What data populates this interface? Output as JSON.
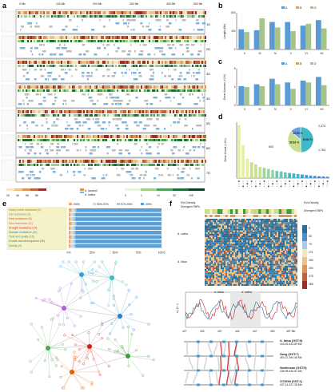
{
  "panel_labels": [
    "a",
    "b",
    "c",
    "d",
    "e",
    "f"
  ],
  "panel_a": {
    "scale_ticks": [
      "0 Mb",
      "100 Mb",
      "200 Mb",
      "300 Mb",
      "400 Mb",
      "500 Mb"
    ],
    "chromosome_groups": [
      "1D",
      "2D",
      "3D",
      "4D",
      "5D",
      "6D",
      "7D"
    ],
    "legend_series": [
      "A. tauschii",
      "A. sativa"
    ],
    "density_ticks": [
      "26",
      "46",
      "66",
      "86",
      "0",
      "1",
      "10",
      "33",
      "105"
    ]
  },
  "panel_f": {
    "labels": {
      "svs_density": "SVs Density",
      "divergent_snps": "Divergent SNPs",
      "a_sativa": "A. sativa",
      "a_fatua": "A. fatua",
      "svs_density_scale": [
        "0",
        "30",
        "79",
        "171",
        "180",
        "200",
        "275",
        "285"
      ],
      "pi_axis": "π (10⁻³)",
      "axis_ticks": [
        "427",
        "432",
        "437",
        "442",
        "447",
        "452",
        "457 Mb"
      ],
      "pi_legend": [
        "A. fatua",
        "A. sativa"
      ]
    },
    "accessions": [
      {
        "name": "A. fatua (GST:9)",
        "range": "443.45-443.89 Mb"
      },
      {
        "name": "Sang (GST:7)",
        "range": "394.21-394.46 Mb"
      },
      {
        "name": "Sanfensan (GST:5)",
        "range": "436.98-426.61 Mb"
      },
      {
        "name": "OT3098 (GST:1)",
        "range": "437.14-437.38 Mb"
      }
    ]
  },
  "chart_data": [
    {
      "type": "bar",
      "panel": "b",
      "ylabel": "Length (Mb)",
      "categories": [
        "II",
        "III",
        "IV",
        "V",
        "VI",
        "VII"
      ],
      "legend": [
        "A",
        "B",
        "D"
      ],
      "colors": [
        "#5b9bd5",
        "#d9a066",
        "#a5c38a"
      ],
      "series": [
        {
          "name": "A",
          "values": [
            440,
            420,
            600,
            600,
            520,
            640
          ]
        },
        {
          "name": "D",
          "values": [
            380,
            680,
            480,
            400,
            560,
            460
          ]
        }
      ],
      "ylim": [
        0,
        800
      ]
    },
    {
      "type": "bar",
      "panel": "c",
      "ylabel": "Gene Number (×10³)",
      "categories": [
        "II",
        "III",
        "IV",
        "V",
        "VI",
        "VII"
      ],
      "legend": [
        "A",
        "B",
        "D"
      ],
      "colors": [
        "#5b9bd5",
        "#d9a066",
        "#a5c38a"
      ],
      "series": [
        {
          "name": "A",
          "values": [
            4.2,
            4.6,
            5.8,
            5.0,
            5.4,
            6.2
          ]
        },
        {
          "name": "D",
          "values": [
            4.0,
            4.2,
            4.6,
            3.6,
            5.0,
            4.4
          ]
        }
      ],
      "ylim": [
        0,
        8
      ]
    },
    {
      "type": "bar",
      "panel": "d",
      "ylabel": "Gene Count (×10³)",
      "values": [
        10.4,
        6.5,
        3.8,
        3.1,
        2.7,
        2.2,
        2.0,
        1.8,
        1.6,
        1.4,
        1.3,
        1.1,
        1.0,
        0.9,
        0.8,
        0.7,
        0.6,
        0.5,
        0.4,
        0.35,
        0.3,
        0.25
      ],
      "pie": {
        "slices": [
          {
            "label": "49.64 %",
            "count": "2,373",
            "value": 49.64,
            "color": "#3fb9c6"
          },
          {
            "label": "36.83 %",
            "count": "1,764",
            "value": 36.83,
            "color": "#c8e08e"
          },
          {
            "label": "13.53 %",
            "count": "653",
            "value": 13.53,
            "color": "#6b9ee0"
          }
        ]
      }
    },
    {
      "type": "bar",
      "panel": "e",
      "categories": [
        "Heavy metal resistance (5)",
        "Salt resistance (6)",
        "Heat resistance (6)",
        "Pest resistance (11)",
        "Drought resistance (14)",
        "Disease resistance (41)",
        "Yield and quality (15)",
        "Growth and development (26)",
        "Sterility (9)"
      ],
      "category_colors": [
        "#a67c00",
        "#888888",
        "#e06000",
        "#b05fd0",
        "#cc2222",
        "#2a7cc8",
        "#3c9c3c",
        "#666666",
        "#4aa84a"
      ],
      "legend": [
        "<90%",
        "90%-97%",
        "97%-99%",
        ">99%"
      ],
      "colors": [
        "#f0a868",
        "#d8d8d8",
        "#a8cce8",
        "#5a9fd6"
      ],
      "series": [
        {
          "name": "<90%",
          "values": [
            3,
            2,
            2,
            3,
            2,
            2,
            3,
            2,
            2
          ]
        },
        {
          "name": "90%-97%",
          "values": [
            3,
            3,
            2,
            3,
            3,
            3,
            2,
            3,
            3
          ]
        },
        {
          "name": "97%-99%",
          "values": [
            2,
            2,
            3,
            2,
            2,
            2,
            2,
            2,
            2
          ]
        },
        {
          "name": ">99%",
          "values": [
            92,
            93,
            93,
            92,
            93,
            93,
            93,
            93,
            93
          ]
        }
      ],
      "xticks": [
        "0%",
        "25%",
        "50%",
        "75%",
        "100%"
      ]
    }
  ]
}
